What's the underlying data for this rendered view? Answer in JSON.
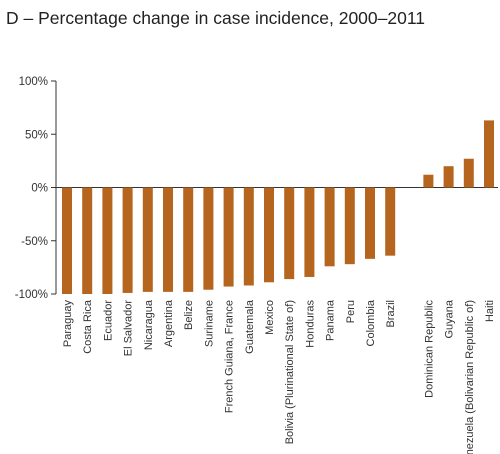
{
  "title": "D –  Percentage change in case incidence, 2000–2011",
  "chart_data": {
    "type": "bar",
    "title": "D –  Percentage change in case incidence, 2000–2011",
    "xlabel": "",
    "ylabel": "",
    "ylim": [
      -100,
      100
    ],
    "yticks": [
      100,
      50,
      0,
      -50,
      -100
    ],
    "ytick_labels": [
      "100%",
      "50%",
      "0%",
      "-50%",
      "-100%"
    ],
    "grid": false,
    "bar_color": "#b5651d",
    "categories": [
      "Paraguay",
      "Costa Rica",
      "Ecuador",
      "El Salvador",
      "Nicaragua",
      "Argentina",
      "Belize",
      "Suriname",
      "French Guiana, France",
      "Guatemala",
      "Mexico",
      "Bolivia (Plurinational State of)",
      "Honduras",
      "Panama",
      "Peru",
      "Colombia",
      "Brazil",
      "Dominican Republic",
      "Guyana",
      "Venezuela (Bolivarian Republic of)",
      "Haiti"
    ],
    "values": [
      -100,
      -100,
      -100,
      -99,
      -98,
      -98,
      -98,
      -96,
      -93,
      -92,
      -89,
      -86,
      -84,
      -74,
      -72,
      -67,
      -64,
      12,
      20,
      27,
      63
    ]
  }
}
